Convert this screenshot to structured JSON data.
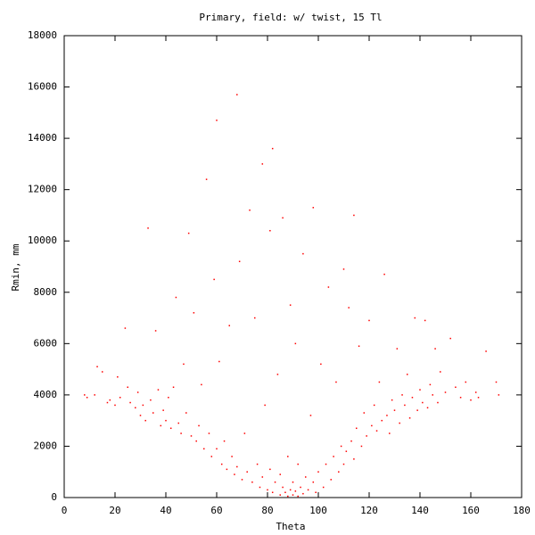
{
  "chart_data": {
    "type": "scatter",
    "title": "Primary, field: w/ twist, 15 Tl",
    "x_label": "Theta",
    "y_label": "Rmin, mm",
    "color": "#ff0000",
    "xlim": [
      0,
      180
    ],
    "ylim": [
      0,
      18000
    ],
    "xticks": [
      0,
      20,
      40,
      60,
      80,
      100,
      120,
      140,
      160,
      180
    ],
    "yticks": [
      0,
      2000,
      4000,
      6000,
      8000,
      10000,
      12000,
      14000,
      16000,
      18000
    ],
    "x": [
      8,
      9,
      12,
      13,
      15,
      17,
      18,
      20,
      21,
      22,
      24,
      25,
      26,
      28,
      29,
      30,
      31,
      32,
      33,
      34,
      35,
      36,
      37,
      38,
      39,
      40,
      41,
      42,
      43,
      44,
      45,
      46,
      47,
      48,
      49,
      50,
      51,
      52,
      53,
      54,
      55,
      56,
      57,
      58,
      59,
      60,
      60,
      61,
      62,
      63,
      64,
      65,
      66,
      67,
      68,
      68,
      69,
      70,
      71,
      72,
      73,
      74,
      75,
      76,
      77,
      78,
      78,
      79,
      80,
      81,
      81,
      82,
      82,
      83,
      84,
      85,
      85,
      86,
      86,
      87,
      88,
      88,
      89,
      89,
      90,
      90,
      91,
      91,
      92,
      92,
      93,
      94,
      94,
      95,
      96,
      97,
      98,
      98,
      99,
      100,
      101,
      102,
      103,
      104,
      105,
      106,
      107,
      108,
      109,
      110,
      110,
      111,
      112,
      113,
      114,
      114,
      115,
      116,
      117,
      118,
      119,
      120,
      121,
      122,
      123,
      124,
      125,
      126,
      127,
      128,
      129,
      130,
      131,
      132,
      133,
      134,
      135,
      136,
      137,
      138,
      139,
      140,
      141,
      142,
      143,
      144,
      145,
      146,
      147,
      148,
      150,
      152,
      154,
      156,
      158,
      160,
      162,
      163,
      166,
      170,
      171
    ],
    "y": [
      4000,
      3900,
      4000,
      5100,
      4900,
      3700,
      3800,
      3600,
      4700,
      3900,
      6600,
      4300,
      3700,
      3500,
      4100,
      3200,
      3600,
      3000,
      10500,
      3800,
      3300,
      6500,
      4200,
      2800,
      3400,
      3000,
      3900,
      2700,
      4300,
      7800,
      2900,
      2500,
      5200,
      3300,
      10300,
      2400,
      7200,
      2200,
      2800,
      4400,
      1900,
      12400,
      2500,
      1600,
      8500,
      14700,
      1900,
      5300,
      1300,
      2200,
      1100,
      6700,
      1600,
      900,
      15700,
      1200,
      9200,
      700,
      2500,
      1000,
      11200,
      600,
      7000,
      1300,
      400,
      13000,
      800,
      3600,
      300,
      10400,
      1100,
      13600,
      200,
      600,
      4800,
      100,
      900,
      10900,
      400,
      200,
      1600,
      50,
      7500,
      300,
      100,
      600,
      6000,
      250,
      50,
      1300,
      400,
      9500,
      150,
      800,
      300,
      3200,
      11300,
      600,
      200,
      1000,
      5200,
      400,
      1300,
      8200,
      700,
      1600,
      4500,
      1000,
      2000,
      8900,
      1300,
      1800,
      7400,
      2200,
      11000,
      1500,
      2700,
      5900,
      2000,
      3300,
      2400,
      6900,
      2800,
      3600,
      2600,
      4500,
      3000,
      8700,
      3200,
      2500,
      3800,
      3400,
      5800,
      2900,
      4000,
      3600,
      4800,
      3100,
      3900,
      7000,
      3400,
      4200,
      3700,
      6900,
      3500,
      4400,
      4000,
      5800,
      3700,
      4900,
      4100,
      6200,
      4300,
      3900,
      4500,
      3800,
      4100,
      3900,
      5700,
      4500,
      4000
    ]
  }
}
